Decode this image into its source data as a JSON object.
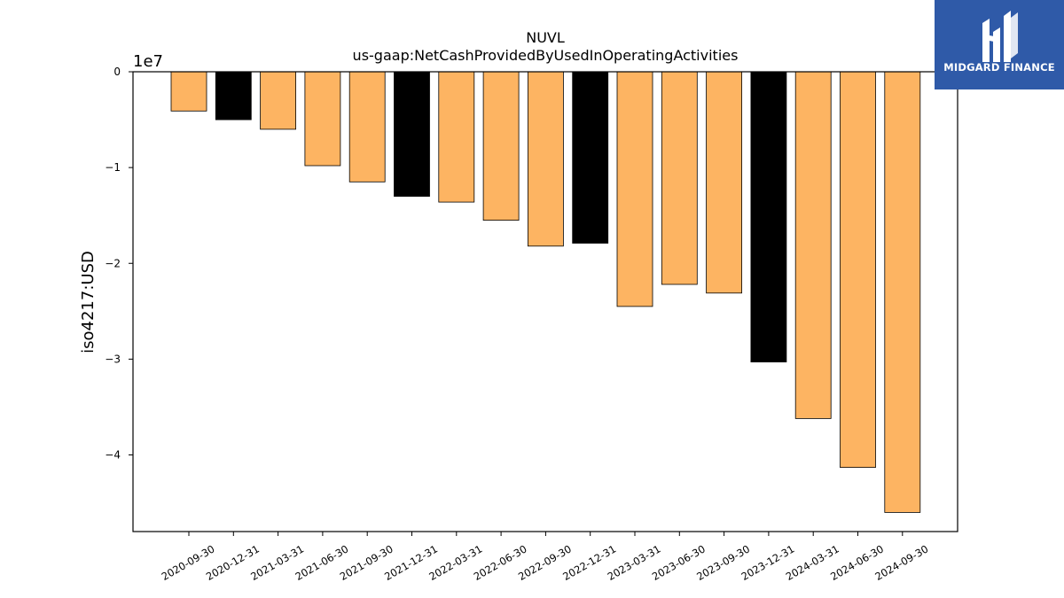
{
  "chart_data": {
    "type": "bar",
    "title": "NUVL",
    "subtitle": "us-gaap:NetCashProvidedByUsedInOperatingActivities",
    "ylabel": "iso4217:USD",
    "xlabel": "",
    "y_scale_label": "1e7",
    "y_multiplier": 10000000,
    "ylim": [
      -4.8,
      0
    ],
    "yticks": [
      {
        "value": 0,
        "label": "0"
      },
      {
        "value": -1,
        "label": "−1"
      },
      {
        "value": -2,
        "label": "−2"
      },
      {
        "value": -3,
        "label": "−3"
      },
      {
        "value": -4,
        "label": "−4"
      }
    ],
    "grid": false,
    "categories": [
      "2020-09-30",
      "2020-12-31",
      "2021-03-31",
      "2021-06-30",
      "2021-09-30",
      "2021-12-31",
      "2022-03-31",
      "2022-06-30",
      "2022-09-30",
      "2022-12-31",
      "2023-03-31",
      "2023-06-30",
      "2023-09-30",
      "2023-12-31",
      "2024-03-31",
      "2024-06-30",
      "2024-09-30"
    ],
    "values": [
      -0.41,
      -0.5,
      -0.6,
      -0.98,
      -1.15,
      -1.3,
      -1.36,
      -1.55,
      -1.82,
      -1.79,
      -2.45,
      -2.22,
      -2.31,
      -3.03,
      -3.62,
      -4.13,
      -4.6
    ],
    "bar_colors": [
      "#fdb462",
      "#000000",
      "#fdb462",
      "#fdb462",
      "#fdb462",
      "#000000",
      "#fdb462",
      "#fdb462",
      "#fdb462",
      "#000000",
      "#fdb462",
      "#fdb462",
      "#fdb462",
      "#000000",
      "#fdb462",
      "#fdb462",
      "#fdb462"
    ]
  },
  "logo": {
    "text": "MIDGARD FINANCE",
    "background": "#2f5aa8"
  }
}
